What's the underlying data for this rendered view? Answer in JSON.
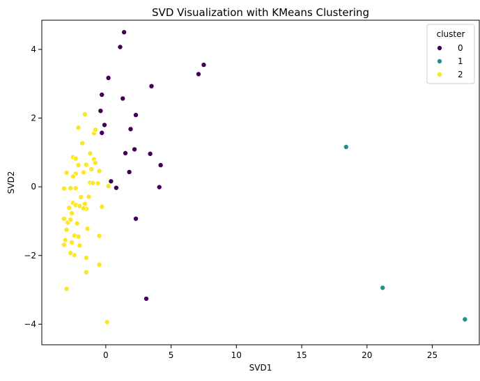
{
  "chart_data": {
    "type": "scatter",
    "title": "SVD Visualization with KMeans Clustering",
    "xlabel": "SVD1",
    "ylabel": "SVD2",
    "xlim": [
      -4.9,
      28.6
    ],
    "ylim": [
      -4.6,
      4.85
    ],
    "xticks": [
      0,
      5,
      10,
      15,
      20,
      25
    ],
    "yticks": [
      -4,
      -2,
      0,
      2,
      4
    ],
    "grid": false,
    "legend": {
      "title": "cluster",
      "placement": "top-right"
    },
    "series": [
      {
        "name": "0",
        "color": "#440154",
        "points": [
          [
            1.4,
            4.5
          ],
          [
            1.1,
            4.07
          ],
          [
            0.2,
            3.17
          ],
          [
            -0.3,
            2.68
          ],
          [
            1.3,
            2.57
          ],
          [
            -0.4,
            2.21
          ],
          [
            2.3,
            2.09
          ],
          [
            -0.1,
            1.8
          ],
          [
            -0.3,
            1.57
          ],
          [
            1.9,
            1.68
          ],
          [
            2.2,
            1.09
          ],
          [
            1.5,
            0.98
          ],
          [
            3.4,
            0.96
          ],
          [
            1.8,
            0.43
          ],
          [
            0.4,
            0.16
          ],
          [
            0.8,
            -0.03
          ],
          [
            4.2,
            0.63
          ],
          [
            4.1,
            -0.01
          ],
          [
            2.3,
            -0.93
          ],
          [
            3.5,
            2.93
          ],
          [
            7.1,
            3.28
          ],
          [
            7.5,
            3.55
          ],
          [
            3.1,
            -3.26
          ]
        ]
      },
      {
        "name": "1",
        "color": "#21918c",
        "points": [
          [
            18.4,
            1.16
          ],
          [
            21.2,
            -2.94
          ],
          [
            27.5,
            -3.86
          ]
        ]
      },
      {
        "name": "2",
        "color": "#fde725",
        "points": [
          [
            -1.6,
            2.11
          ],
          [
            -2.1,
            1.72
          ],
          [
            -0.9,
            1.56
          ],
          [
            -0.8,
            1.66
          ],
          [
            -1.8,
            1.27
          ],
          [
            -2.5,
            0.86
          ],
          [
            -2.3,
            0.82
          ],
          [
            -1.2,
            0.97
          ],
          [
            -0.9,
            0.8
          ],
          [
            -0.8,
            0.7
          ],
          [
            -1.5,
            0.64
          ],
          [
            -2.1,
            0.63
          ],
          [
            -1.1,
            0.51
          ],
          [
            -0.5,
            0.46
          ],
          [
            -1.7,
            0.42
          ],
          [
            -2.3,
            0.38
          ],
          [
            -2.5,
            0.3
          ],
          [
            -3.0,
            0.41
          ],
          [
            -2.7,
            -0.04
          ],
          [
            -3.2,
            -0.05
          ],
          [
            -2.3,
            -0.04
          ],
          [
            -1.2,
            0.12
          ],
          [
            -1.0,
            0.11
          ],
          [
            -0.6,
            0.1
          ],
          [
            0.2,
            0.02
          ],
          [
            -1.9,
            -0.3
          ],
          [
            -1.3,
            -0.29
          ],
          [
            -2.8,
            -0.61
          ],
          [
            -2.5,
            -0.47
          ],
          [
            -2.3,
            -0.53
          ],
          [
            -2.0,
            -0.56
          ],
          [
            -1.6,
            -0.5
          ],
          [
            -1.5,
            -0.64
          ],
          [
            -1.7,
            -0.63
          ],
          [
            -2.6,
            -0.77
          ],
          [
            -0.3,
            -0.58
          ],
          [
            -3.2,
            -0.93
          ],
          [
            -2.9,
            -1.04
          ],
          [
            -2.7,
            -0.96
          ],
          [
            -2.2,
            -1.07
          ],
          [
            -1.4,
            -1.22
          ],
          [
            -3.0,
            -1.25
          ],
          [
            -2.4,
            -1.42
          ],
          [
            -2.1,
            -1.45
          ],
          [
            -0.5,
            -1.43
          ],
          [
            -3.1,
            -1.55
          ],
          [
            -2.6,
            -1.62
          ],
          [
            -3.2,
            -1.69
          ],
          [
            -2.0,
            -1.71
          ],
          [
            -2.4,
            -1.99
          ],
          [
            -2.7,
            -1.93
          ],
          [
            -1.5,
            -2.07
          ],
          [
            -0.5,
            -2.27
          ],
          [
            -1.5,
            -2.49
          ],
          [
            -3.0,
            -2.97
          ],
          [
            0.1,
            -3.94
          ]
        ]
      }
    ]
  }
}
